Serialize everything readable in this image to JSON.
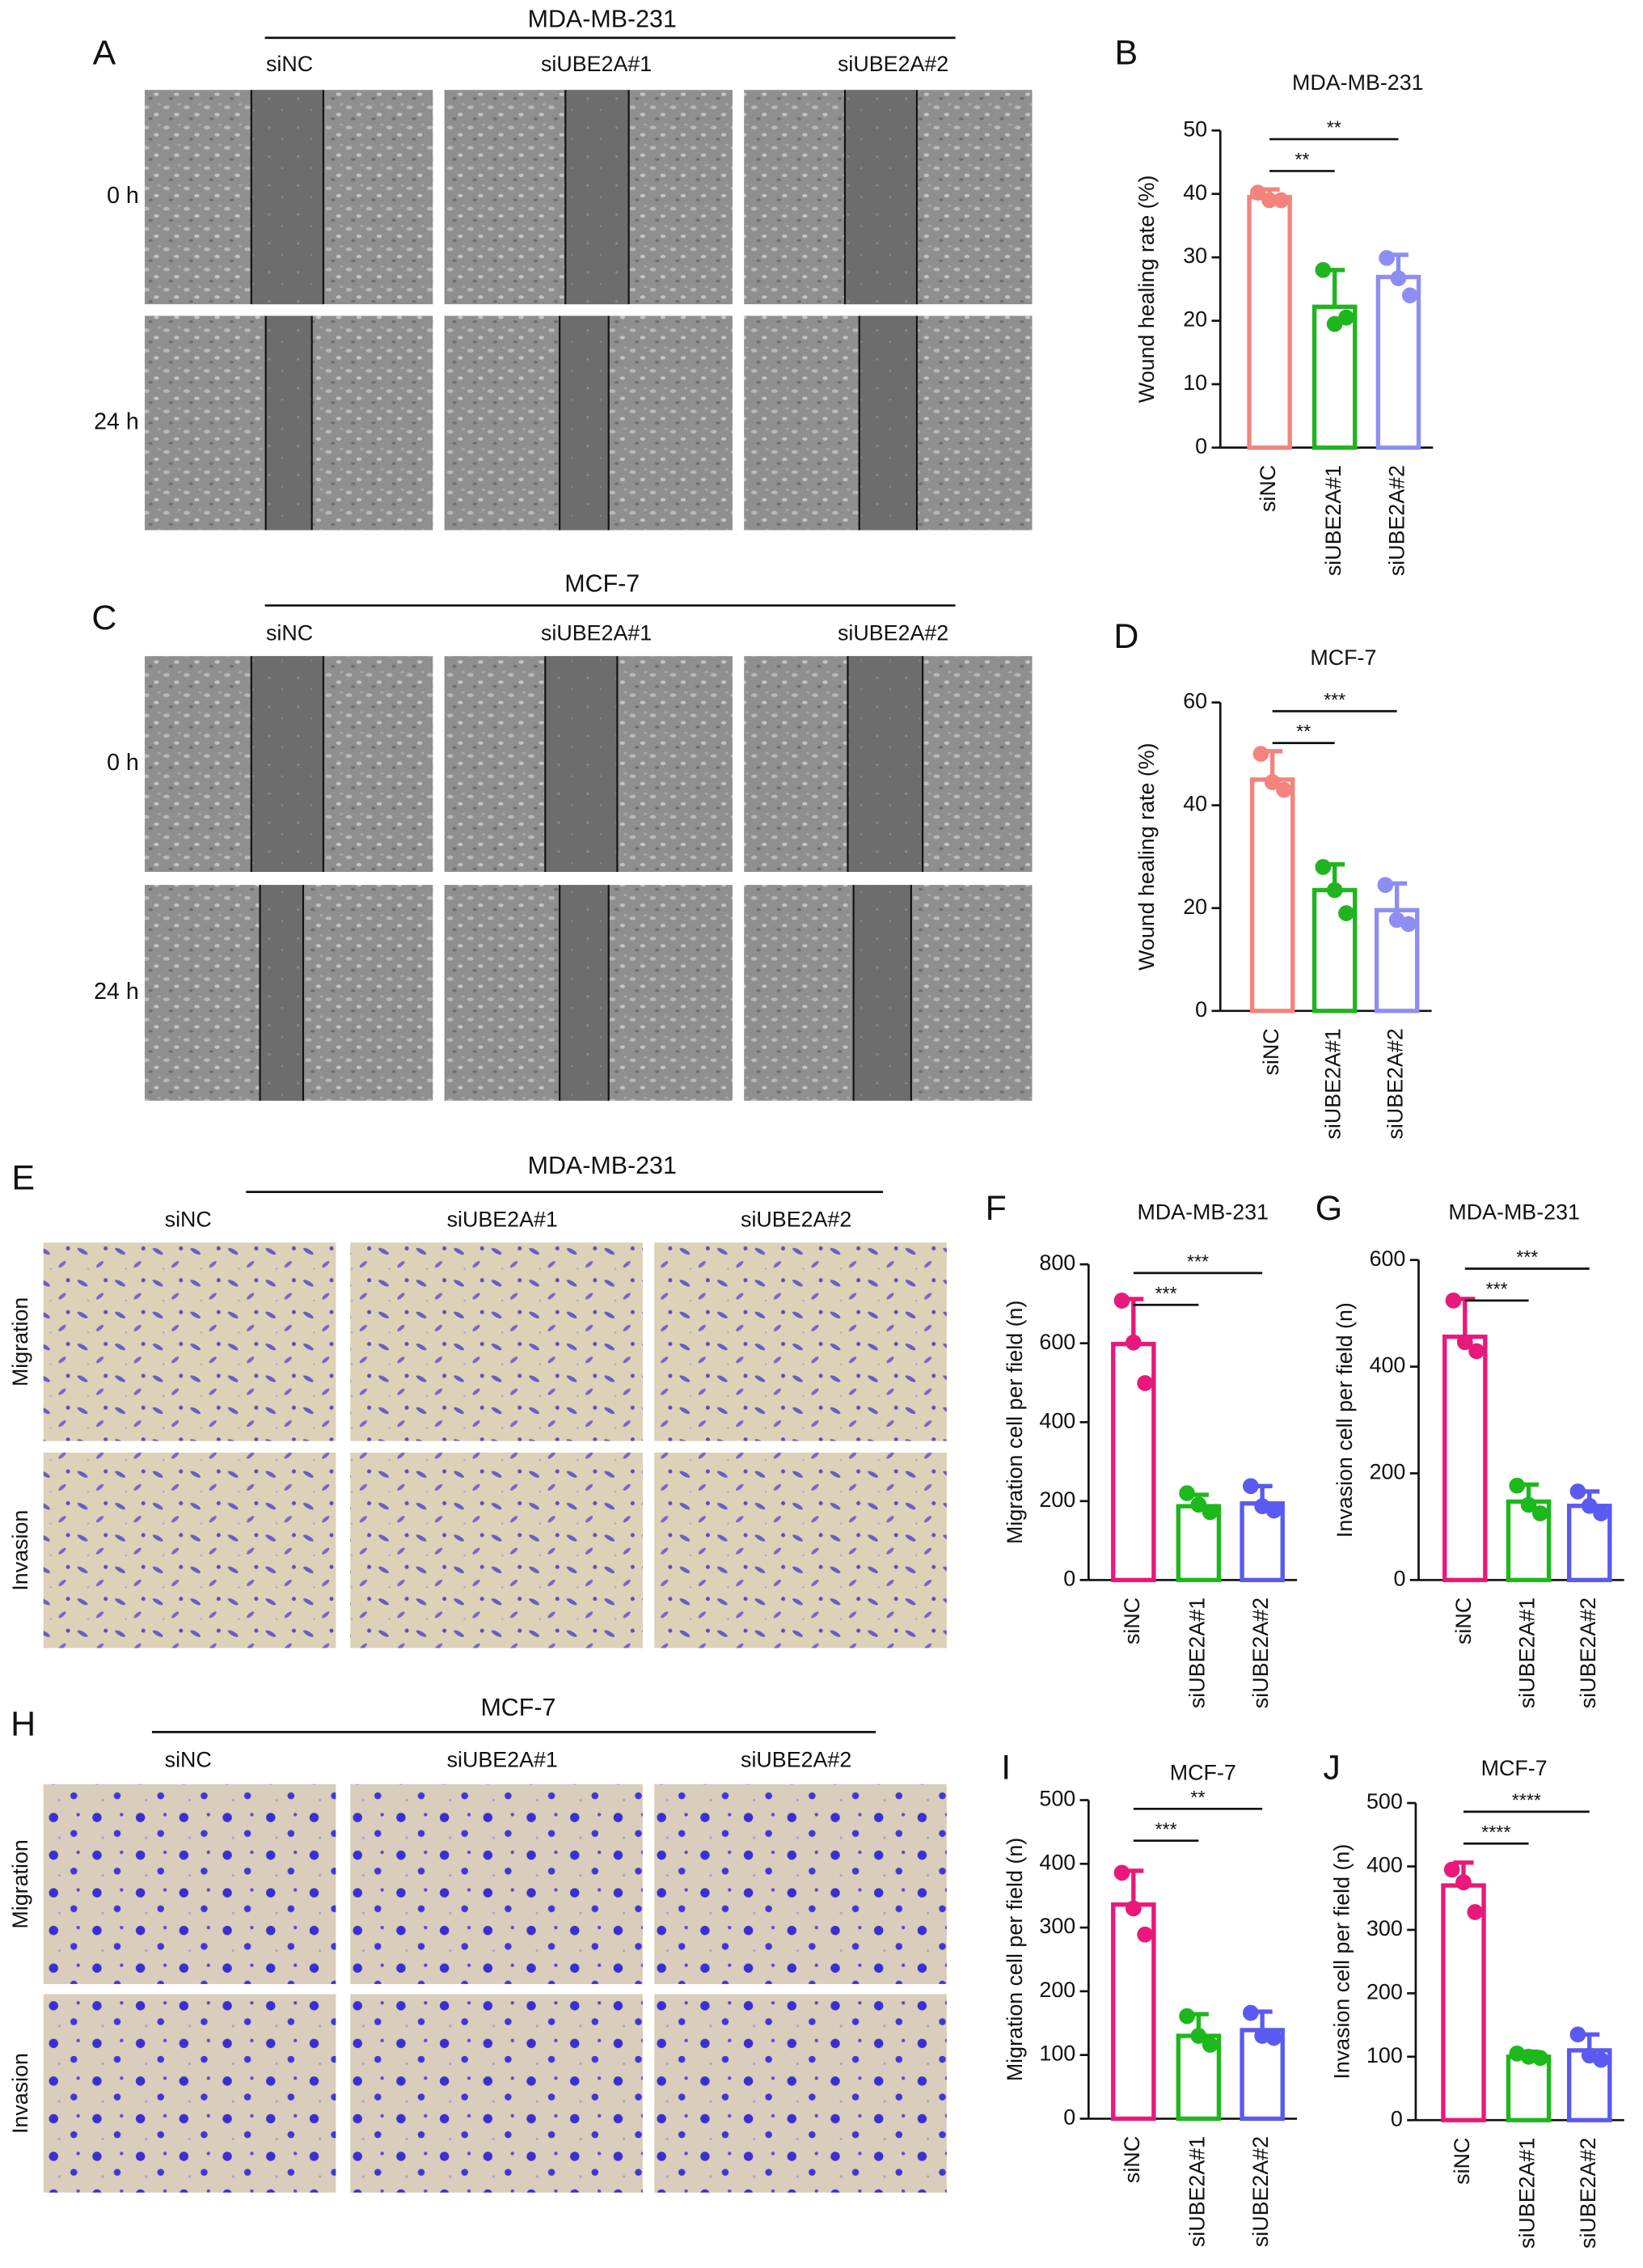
{
  "image_panels": [
    {
      "label": "A",
      "title": "MDA-MB-231",
      "columns": [
        "siNC",
        "siUBE2A#1",
        "siUBE2A#2"
      ],
      "rows": [
        "0 h",
        "24 h"
      ]
    },
    {
      "label": "C",
      "title": "MCF-7",
      "columns": [
        "siNC",
        "siUBE2A#1",
        "siUBE2A#2"
      ],
      "rows": [
        "0 h",
        "24 h"
      ]
    },
    {
      "label": "E",
      "title": "MDA-MB-231",
      "columns": [
        "siNC",
        "siUBE2A#1",
        "siUBE2A#2"
      ],
      "rows": [
        "Migration",
        "Invasion"
      ]
    },
    {
      "label": "H",
      "title": "MCF-7",
      "columns": [
        "siNC",
        "siUBE2A#1",
        "siUBE2A#2"
      ],
      "rows": [
        "Migration",
        "Invasion"
      ]
    }
  ],
  "chart_data": [
    {
      "type": "bar",
      "label": "B",
      "title": "MDA-MB-231",
      "y_label": "Wound healing rate (%)",
      "categories": [
        "siNC",
        "siUBE2A#1",
        "siUBE2A#2"
      ],
      "colors": [
        "#f4837d",
        "#1fb51f",
        "#8e8ef2"
      ],
      "values": [
        39.5,
        22.2,
        26.9
      ],
      "errors": [
        1.2,
        5.8,
        3.5
      ],
      "points": [
        [
          40.2,
          39,
          39
        ],
        [
          28,
          19.5,
          20.5
        ],
        [
          29.9,
          26.7,
          24
        ]
      ],
      "ylim": [
        0,
        50
      ],
      "yticks": [
        0,
        10,
        20,
        30,
        40,
        50
      ],
      "comparisons": [
        {
          "pair": [
            0,
            1
          ],
          "label": "**"
        },
        {
          "pair": [
            0,
            2
          ],
          "label": "**"
        }
      ]
    },
    {
      "type": "bar",
      "label": "D",
      "title": "MCF-7",
      "y_label": "Wound healing rate (%)",
      "categories": [
        "siNC",
        "siUBE2A#1",
        "siUBE2A#2"
      ],
      "colors": [
        "#f4837d",
        "#1fb51f",
        "#8e8ef2"
      ],
      "values": [
        45,
        23.5,
        19.6
      ],
      "errors": [
        5.5,
        5,
        5.2
      ],
      "points": [
        [
          50,
          44.5,
          43
        ],
        [
          28,
          23.5,
          19
        ],
        [
          24.5,
          17.7,
          16.9
        ]
      ],
      "ylim": [
        0,
        60
      ],
      "yticks": [
        0,
        20,
        40,
        60
      ],
      "comparisons": [
        {
          "pair": [
            0,
            1
          ],
          "label": "**"
        },
        {
          "pair": [
            0,
            2
          ],
          "label": "***"
        }
      ]
    },
    {
      "type": "bar",
      "label": "F",
      "title": "MDA-MB-231",
      "y_label": "Migration cell per field (n)",
      "categories": [
        "siNC",
        "siUBE2A#1",
        "siUBE2A#2"
      ],
      "colors": [
        "#e8197a",
        "#1cb81c",
        "#5a5af0"
      ],
      "values": [
        598,
        187,
        194
      ],
      "errors": [
        114,
        29,
        44
      ],
      "points": [
        [
          708,
          602,
          499
        ],
        [
          220,
          191,
          172
        ],
        [
          238,
          187,
          176
        ]
      ],
      "ylim": [
        0,
        800
      ],
      "yticks": [
        0,
        200,
        400,
        600,
        800
      ],
      "comparisons": [
        {
          "pair": [
            0,
            1
          ],
          "label": "***"
        },
        {
          "pair": [
            0,
            2
          ],
          "label": "***"
        }
      ]
    },
    {
      "type": "bar",
      "label": "G",
      "title": "MDA-MB-231",
      "y_label": "Invasion cell per field (n)",
      "categories": [
        "siNC",
        "siUBE2A#1",
        "siUBE2A#2"
      ],
      "colors": [
        "#e8197a",
        "#1cb81c",
        "#5a5af0"
      ],
      "values": [
        456,
        147,
        139
      ],
      "errors": [
        71,
        32,
        27
      ],
      "points": [
        [
          524,
          446,
          429
        ],
        [
          177,
          141,
          125
        ],
        [
          166,
          139,
          125
        ]
      ],
      "ylim": [
        0,
        600
      ],
      "yticks": [
        0,
        200,
        400,
        600
      ],
      "comparisons": [
        {
          "pair": [
            0,
            1
          ],
          "label": "***"
        },
        {
          "pair": [
            0,
            2
          ],
          "label": "***"
        }
      ]
    },
    {
      "type": "bar",
      "label": "I",
      "title": "MCF-7",
      "y_label": "Migration cell per field (n)",
      "categories": [
        "siNC",
        "siUBE2A#1",
        "siUBE2A#2"
      ],
      "colors": [
        "#e8197a",
        "#1cb81c",
        "#5a5af0"
      ],
      "values": [
        336,
        130,
        139
      ],
      "errors": [
        53,
        34,
        29
      ],
      "points": [
        [
          386,
          330,
          289
        ],
        [
          161,
          130,
          116
        ],
        [
          166,
          130,
          127
        ]
      ],
      "ylim": [
        0,
        500
      ],
      "yticks": [
        0,
        100,
        200,
        300,
        400,
        500
      ],
      "comparisons": [
        {
          "pair": [
            0,
            1
          ],
          "label": "***"
        },
        {
          "pair": [
            0,
            2
          ],
          "label": "**"
        }
      ]
    },
    {
      "type": "bar",
      "label": "J",
      "title": "MCF-7",
      "y_label": "Invasion cell per field (n)",
      "categories": [
        "siNC",
        "siUBE2A#1",
        "siUBE2A#2"
      ],
      "colors": [
        "#e8197a",
        "#1cb81c",
        "#5a5af0"
      ],
      "values": [
        370,
        100,
        110
      ],
      "errors": [
        36,
        8,
        25
      ],
      "points": [
        [
          395,
          375,
          328
        ],
        [
          105,
          100,
          98
        ],
        [
          135,
          102,
          95
        ]
      ],
      "ylim": [
        0,
        500
      ],
      "yticks": [
        0,
        100,
        200,
        300,
        400,
        500
      ],
      "comparisons": [
        {
          "pair": [
            0,
            1
          ],
          "label": "****"
        },
        {
          "pair": [
            0,
            2
          ],
          "label": "****"
        }
      ]
    }
  ]
}
